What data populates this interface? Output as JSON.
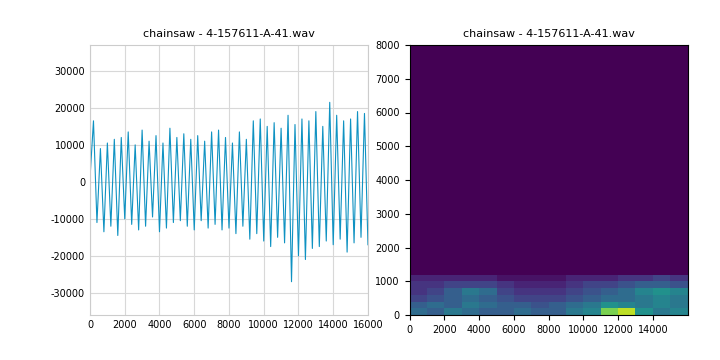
{
  "chart_data": [
    {
      "type": "line",
      "title": "chainsaw - 4-157611-A-41.wav",
      "color": "#0f92c2",
      "grid": true,
      "x": [
        0,
        200,
        400,
        600,
        800,
        1000,
        1200,
        1400,
        1600,
        1800,
        2000,
        2200,
        2400,
        2600,
        2800,
        3000,
        3200,
        3400,
        3600,
        3800,
        4000,
        4200,
        4400,
        4600,
        4800,
        5000,
        5200,
        5400,
        5600,
        5800,
        6000,
        6200,
        6400,
        6600,
        6800,
        7000,
        7200,
        7400,
        7600,
        7800,
        8000,
        8200,
        8400,
        8600,
        8800,
        9000,
        9200,
        9400,
        9600,
        9800,
        10000,
        10200,
        10400,
        10600,
        10800,
        11000,
        11200,
        11400,
        11600,
        11800,
        12000,
        12200,
        12400,
        12600,
        12800,
        13000,
        13200,
        13400,
        13600,
        13800,
        14000,
        14200,
        14400,
        14600,
        14800,
        15000,
        15200,
        15400,
        15600,
        15800,
        16000
      ],
      "values": [
        1000,
        16500,
        -11000,
        9000,
        -13500,
        10500,
        -12000,
        11500,
        -14500,
        12000,
        -10000,
        13500,
        -11500,
        10000,
        -13000,
        14000,
        -12000,
        11000,
        -9500,
        12500,
        -13500,
        10500,
        -12500,
        14500,
        -11000,
        12000,
        -10500,
        13000,
        -12000,
        11500,
        -13000,
        12500,
        -10500,
        11000,
        -12500,
        13500,
        -11500,
        14000,
        -13000,
        12000,
        -12500,
        10500,
        -14000,
        13500,
        -12000,
        11500,
        -15500,
        16500,
        -14000,
        17000,
        -16000,
        15000,
        -17500,
        16000,
        -15000,
        14500,
        -16500,
        18000,
        -27000,
        15500,
        -20000,
        17000,
        -21000,
        16500,
        -18000,
        19000,
        -17500,
        15000,
        -16000,
        21500,
        -17000,
        18000,
        -15500,
        16500,
        -19000,
        17000,
        -16500,
        19000,
        -15000,
        18500,
        -17000
      ],
      "xlim": [
        0,
        16000
      ],
      "xticks": [
        0,
        2000,
        4000,
        6000,
        8000,
        10000,
        12000,
        14000,
        16000
      ],
      "ylim": [
        -36000,
        37000
      ],
      "yticks": [
        -30000,
        -20000,
        -10000,
        0,
        10000,
        20000,
        30000
      ]
    },
    {
      "type": "heatmap",
      "title": "chainsaw - 4-157611-A-41.wav",
      "color": "viridis",
      "x_edges": [
        0,
        1000,
        2000,
        3000,
        4000,
        5000,
        6000,
        7000,
        8000,
        9000,
        10000,
        11000,
        12000,
        13000,
        14000,
        15000,
        16000
      ],
      "y_edges": [
        0,
        200,
        400,
        600,
        800,
        1000,
        1200,
        8000
      ],
      "cells": [
        [
          0.35,
          0.3,
          0.4,
          0.35,
          0.3,
          0.3,
          0.35,
          0.3,
          0.3,
          0.4,
          0.45,
          0.8,
          0.9,
          0.5,
          0.4,
          0.45
        ],
        [
          0.3,
          0.35,
          0.3,
          0.4,
          0.35,
          0.3,
          0.3,
          0.25,
          0.3,
          0.35,
          0.4,
          0.5,
          0.45,
          0.4,
          0.45,
          0.4
        ],
        [
          0.2,
          0.25,
          0.3,
          0.35,
          0.3,
          0.25,
          0.2,
          0.2,
          0.2,
          0.25,
          0.3,
          0.35,
          0.35,
          0.4,
          0.45,
          0.4
        ],
        [
          0.15,
          0.2,
          0.3,
          0.4,
          0.35,
          0.2,
          0.15,
          0.15,
          0.15,
          0.2,
          0.25,
          0.3,
          0.35,
          0.45,
          0.5,
          0.45
        ],
        [
          0.15,
          0.15,
          0.2,
          0.2,
          0.2,
          0.15,
          0.1,
          0.1,
          0.1,
          0.15,
          0.2,
          0.2,
          0.25,
          0.3,
          0.3,
          0.25
        ],
        [
          0.1,
          0.1,
          0.1,
          0.1,
          0.1,
          0.05,
          0.05,
          0.05,
          0.05,
          0.1,
          0.1,
          0.1,
          0.15,
          0.15,
          0.2,
          0.15
        ],
        [
          0,
          0,
          0,
          0,
          0,
          0,
          0,
          0,
          0,
          0,
          0,
          0,
          0,
          0,
          0,
          0
        ]
      ],
      "cell_range": [
        0,
        1
      ],
      "xlim": [
        0,
        16000
      ],
      "xticks": [
        0,
        2000,
        4000,
        6000,
        8000,
        10000,
        12000,
        14000
      ],
      "ylim": [
        0,
        8000
      ],
      "yticks": [
        0,
        1000,
        2000,
        3000,
        4000,
        5000,
        6000,
        7000,
        8000
      ]
    }
  ]
}
